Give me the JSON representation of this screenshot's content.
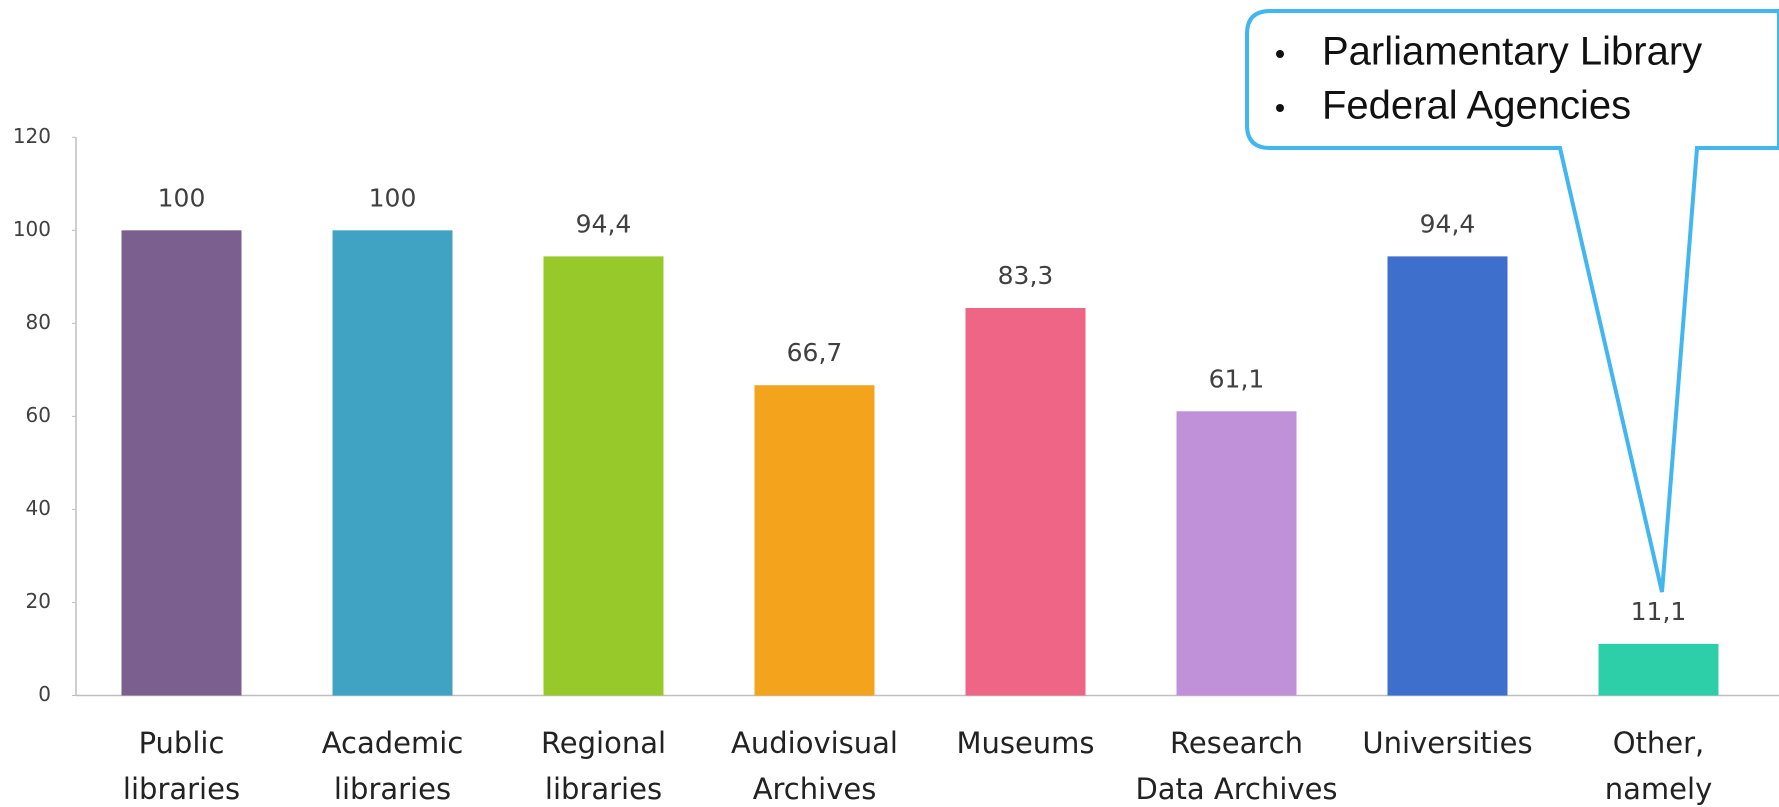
{
  "chart_data": {
    "type": "bar",
    "categories": [
      [
        "Public",
        "libraries"
      ],
      [
        "Academic",
        "libraries"
      ],
      [
        "Regional",
        "libraries"
      ],
      [
        "Audiovisual",
        "Archives"
      ],
      [
        "Museums"
      ],
      [
        "Research",
        "Data Archives"
      ],
      [
        "Universities"
      ],
      [
        "Other,",
        "namely"
      ]
    ],
    "values": [
      100,
      100,
      94.4,
      66.7,
      83.3,
      61.1,
      94.4,
      11.1
    ],
    "value_labels": [
      "100",
      "100",
      "94,4",
      "66,7",
      "83,3",
      "61,1",
      "94,4",
      "11,1"
    ],
    "colors": [
      "#7b5f8e",
      "#41a3c4",
      "#98c92a",
      "#f3a31c",
      "#ef6585",
      "#c090d9",
      "#3e6fcd",
      "#2ccfa7"
    ],
    "ylim": [
      0,
      120
    ],
    "yticks": [
      0,
      20,
      40,
      60,
      80,
      100,
      120
    ],
    "grid": false,
    "annotation": {
      "lines": [
        "Parliamentary Library",
        "Federal Agencies"
      ]
    }
  }
}
